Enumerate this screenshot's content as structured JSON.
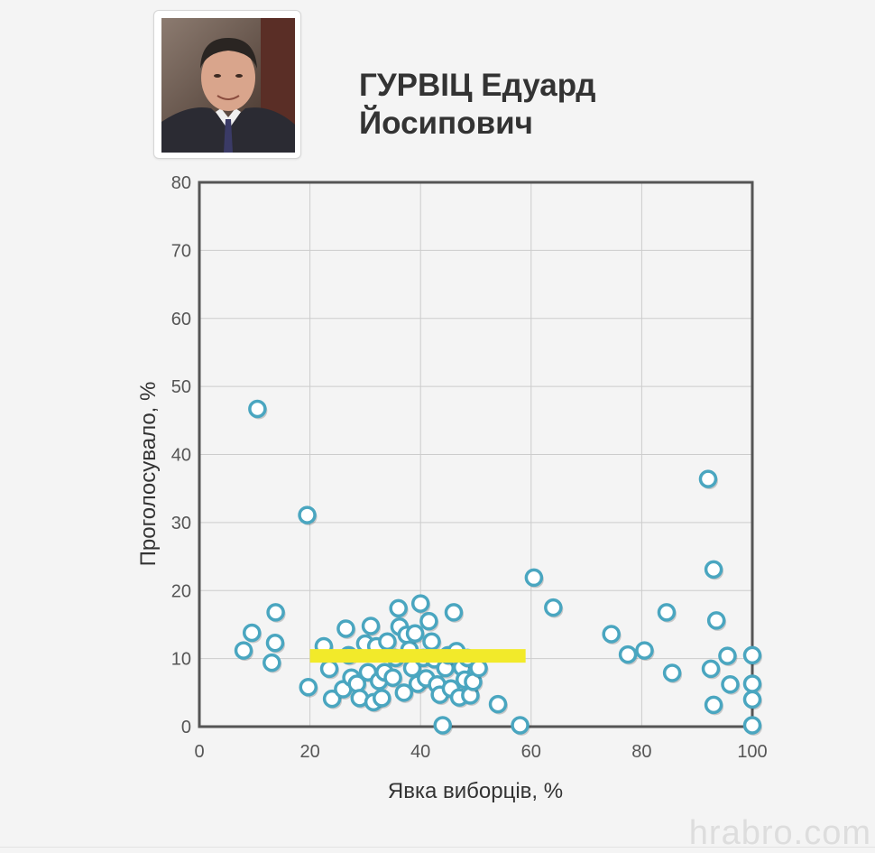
{
  "candidate": {
    "name_line1": "ГУРВІЦ Едуард",
    "name_line2": "Йосипович"
  },
  "watermark": "hrabro.com",
  "colors": {
    "point_stroke": "#4aa6c0",
    "point_fill": "#ffffff",
    "median_bar": "#f2ea2a",
    "grid": "#cccccc",
    "frame": "#555555"
  },
  "chart_data": {
    "type": "scatter",
    "xlabel": "Явка виборців, %",
    "ylabel": "Проголосувало, %",
    "xlim": [
      0,
      100
    ],
    "ylim": [
      0,
      80
    ],
    "xticks": [
      "0",
      "20",
      "40",
      "60",
      "80",
      "100"
    ],
    "yticks": [
      "0",
      "10",
      "20",
      "30",
      "40",
      "50",
      "60",
      "70",
      "80"
    ],
    "grid": true,
    "reference_bar": {
      "x_from": 20,
      "x_to": 59,
      "y": 10.4
    },
    "points": [
      [
        10.5,
        46.7
      ],
      [
        19.5,
        31.1
      ],
      [
        13.8,
        16.8
      ],
      [
        9.5,
        13.8
      ],
      [
        13.7,
        12.3
      ],
      [
        8,
        11.2
      ],
      [
        13.1,
        9.4
      ],
      [
        19.7,
        5.8
      ],
      [
        22.5,
        11.8
      ],
      [
        23.5,
        8.5
      ],
      [
        24,
        4.1
      ],
      [
        26,
        5.5
      ],
      [
        26.5,
        14.4
      ],
      [
        27,
        10.5
      ],
      [
        27.5,
        7.2
      ],
      [
        28.5,
        6.3
      ],
      [
        29,
        4.2
      ],
      [
        30,
        12.2
      ],
      [
        30.5,
        8
      ],
      [
        31,
        14.8
      ],
      [
        31.5,
        3.6
      ],
      [
        32,
        11.8
      ],
      [
        32.5,
        6.7
      ],
      [
        33,
        4.2
      ],
      [
        33.5,
        8
      ],
      [
        34,
        12.5
      ],
      [
        35,
        7.2
      ],
      [
        35.5,
        10.1
      ],
      [
        36,
        17.4
      ],
      [
        36.2,
        14.7
      ],
      [
        37,
        5
      ],
      [
        37.5,
        13.5
      ],
      [
        38,
        11.3
      ],
      [
        38.5,
        8.6
      ],
      [
        39,
        13.7
      ],
      [
        39.5,
        6.3
      ],
      [
        40,
        18.1
      ],
      [
        40.5,
        10.1
      ],
      [
        41,
        7.1
      ],
      [
        41.5,
        15.5
      ],
      [
        42,
        12.5
      ],
      [
        42.5,
        9.9
      ],
      [
        43,
        6.2
      ],
      [
        43.5,
        4.7
      ],
      [
        44,
        0.2
      ],
      [
        44.5,
        8.6
      ],
      [
        45,
        10.5
      ],
      [
        45.5,
        5.6
      ],
      [
        46,
        16.8
      ],
      [
        46.5,
        11.1
      ],
      [
        47,
        4.3
      ],
      [
        47.5,
        8.7
      ],
      [
        48,
        6.9
      ],
      [
        48.5,
        10.1
      ],
      [
        49,
        4.6
      ],
      [
        49.5,
        6.6
      ],
      [
        50.5,
        8.6
      ],
      [
        54,
        3.3
      ],
      [
        58,
        0.2
      ],
      [
        60.5,
        21.9
      ],
      [
        64,
        17.5
      ],
      [
        74.5,
        13.6
      ],
      [
        77.5,
        10.6
      ],
      [
        80.5,
        11.2
      ],
      [
        84.5,
        16.8
      ],
      [
        85.5,
        7.9
      ],
      [
        92,
        36.4
      ],
      [
        92.5,
        8.5
      ],
      [
        93,
        3.2
      ],
      [
        93,
        23.1
      ],
      [
        93.5,
        15.6
      ],
      [
        95.5,
        10.4
      ],
      [
        96,
        6.2
      ],
      [
        100,
        10.5
      ],
      [
        100,
        6.3
      ],
      [
        100,
        4
      ],
      [
        100,
        0.2
      ]
    ]
  }
}
